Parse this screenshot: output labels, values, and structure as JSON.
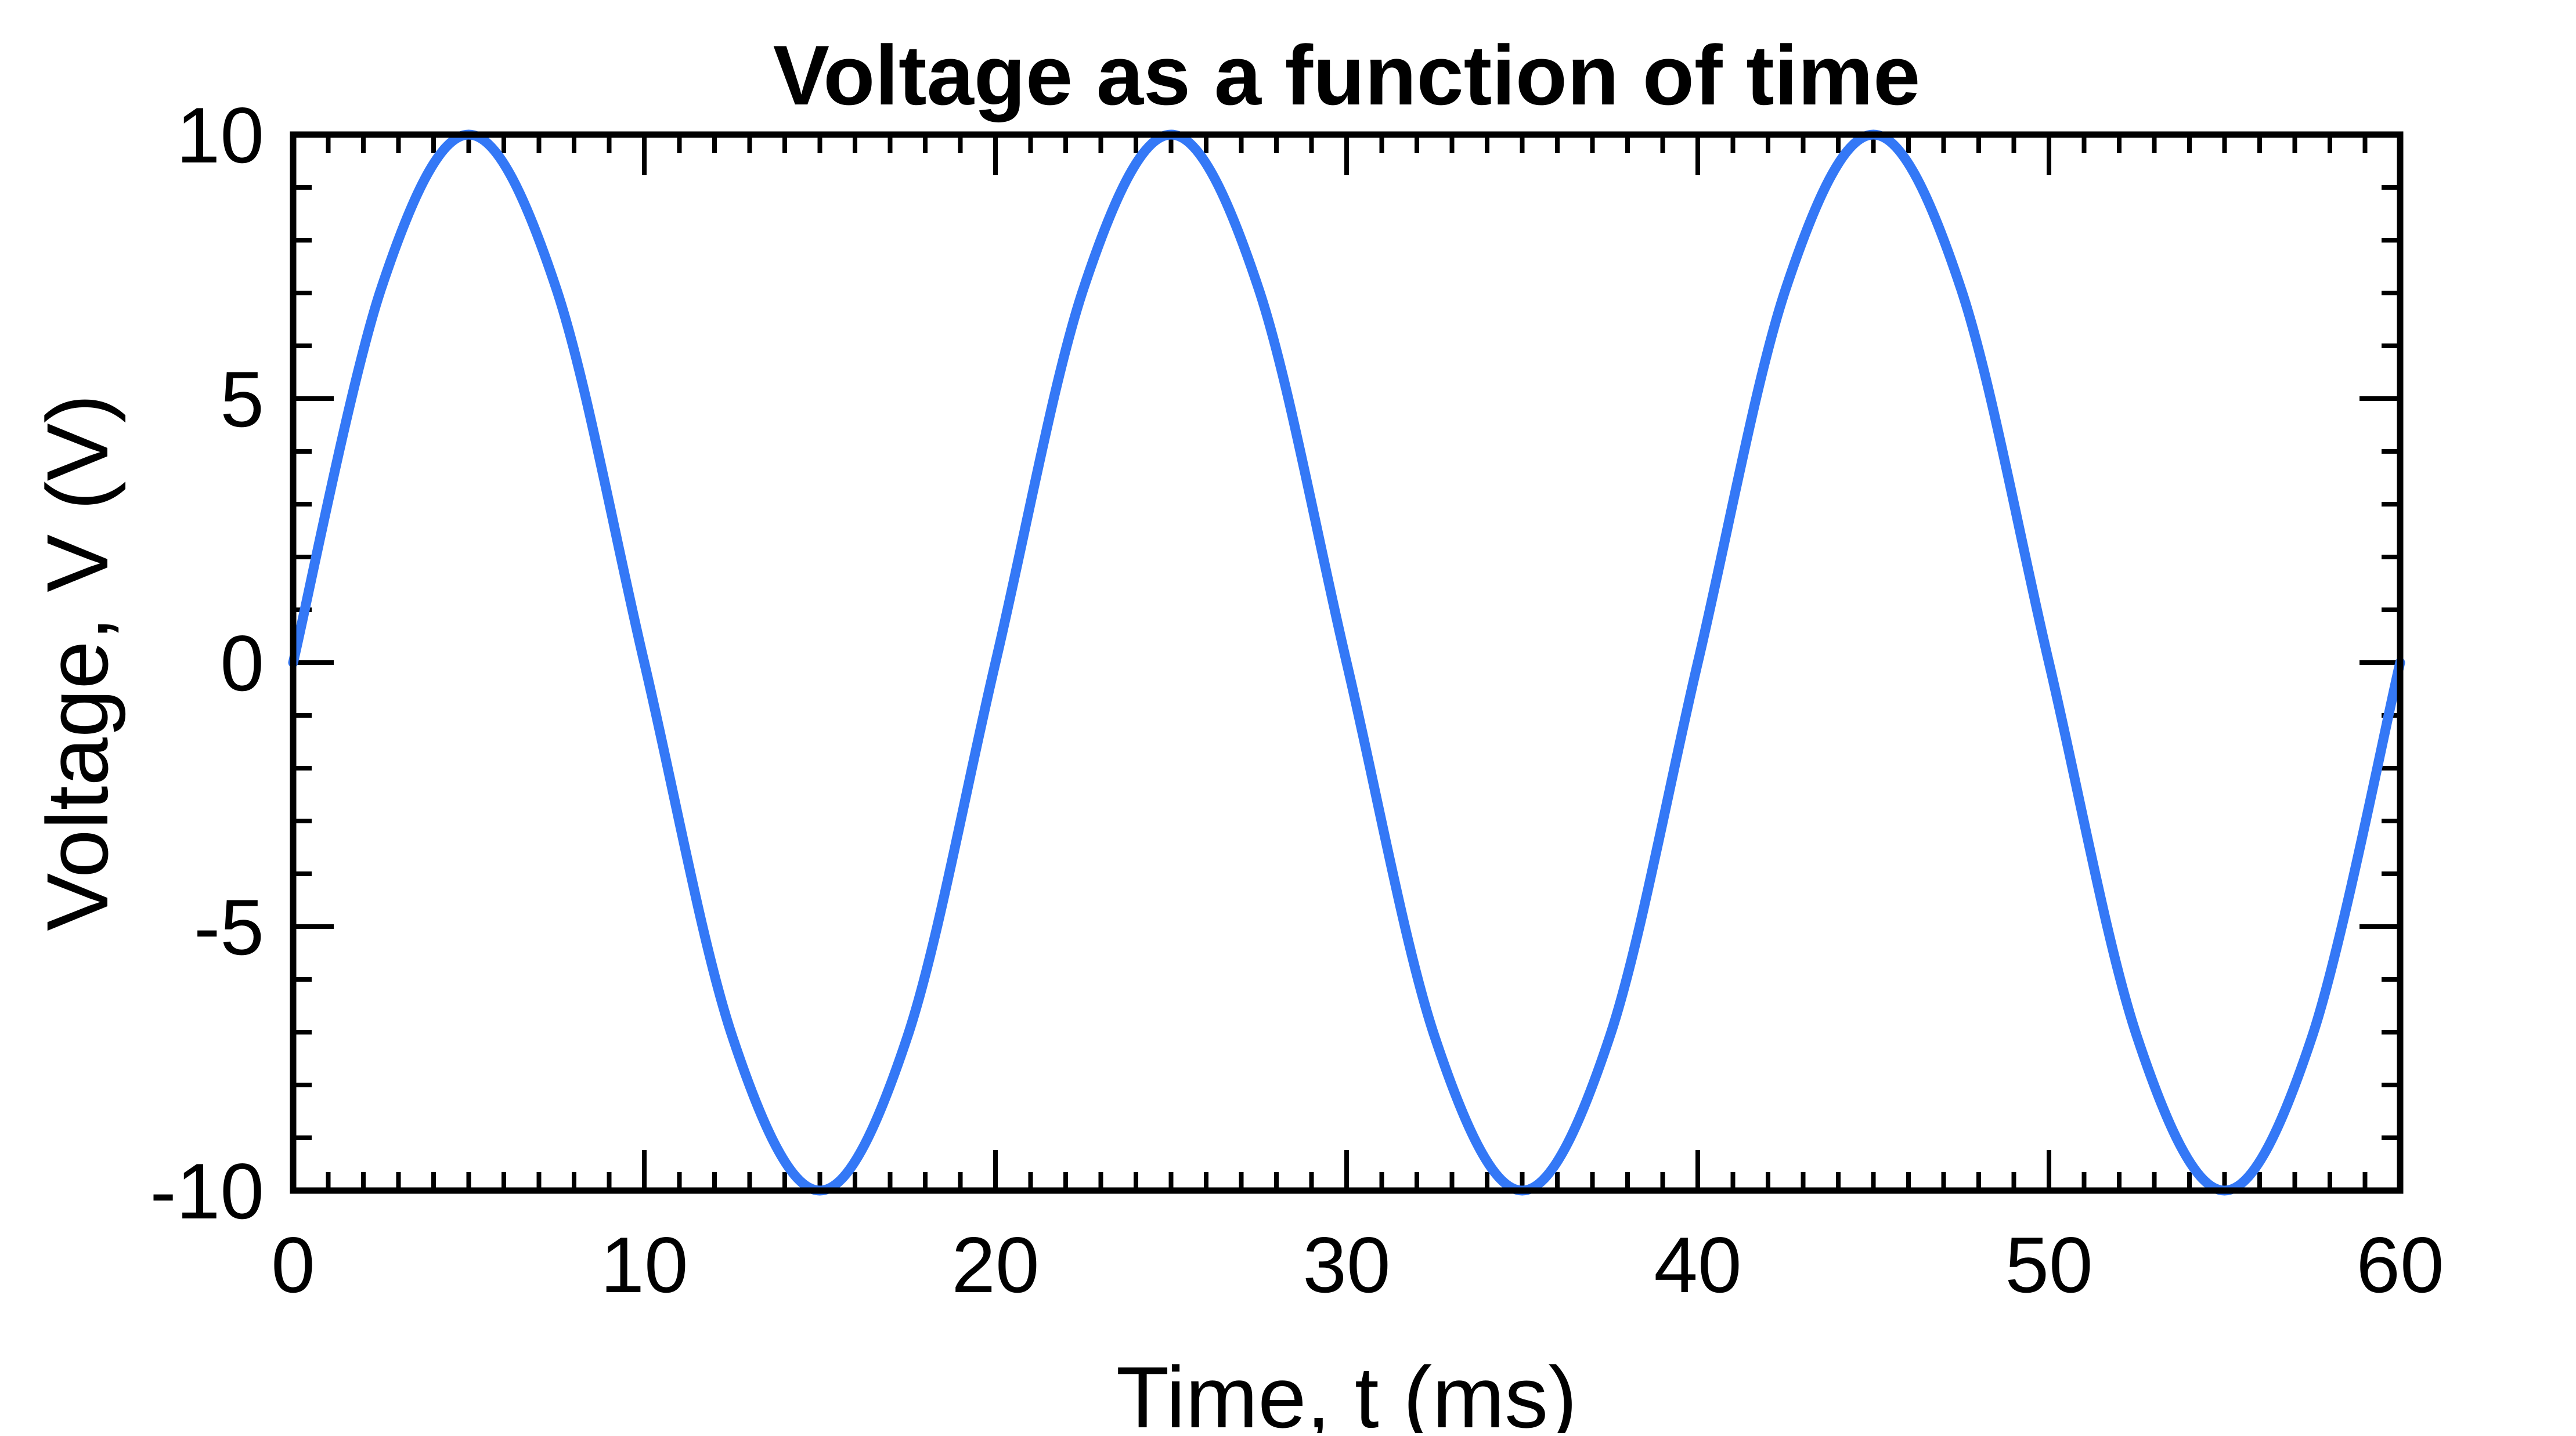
{
  "chart_data": {
    "type": "line",
    "title": "Voltage as a function of time",
    "xlabel": "Time, t (ms)",
    "ylabel": "Voltage, V (V)",
    "xlim": [
      0,
      60
    ],
    "ylim": [
      -10,
      10
    ],
    "x_major_ticks": [
      0,
      10,
      20,
      30,
      40,
      50,
      60
    ],
    "x_tick_labels": [
      "0",
      "10",
      "20",
      "30",
      "40",
      "50",
      "60"
    ],
    "x_minor_step": 1,
    "y_major_ticks": [
      -10,
      -5,
      0,
      5,
      10
    ],
    "y_tick_labels": [
      "-10",
      "-5",
      "0",
      "5",
      "10"
    ],
    "y_minor_step": 1,
    "grid": false,
    "legend": "none",
    "line_color": "#3478F6",
    "axis_color": "#000000",
    "series": [
      {
        "x": [
          0,
          2.5,
          5,
          7.5,
          10,
          12.5,
          15,
          17.5,
          20,
          22.5,
          25,
          27.5,
          30,
          32.5,
          35,
          37.5,
          40,
          42.5,
          45,
          47.5,
          50,
          52.5,
          55,
          57.5,
          60
        ],
        "y": [
          0,
          7.07,
          10,
          7.07,
          0,
          -7.07,
          -10,
          -7.07,
          0,
          7.07,
          10,
          7.07,
          0,
          -7.07,
          -10,
          -7.07,
          0,
          7.07,
          10,
          7.07,
          0,
          -7.07,
          -10,
          -7.07,
          0
        ]
      }
    ]
  }
}
